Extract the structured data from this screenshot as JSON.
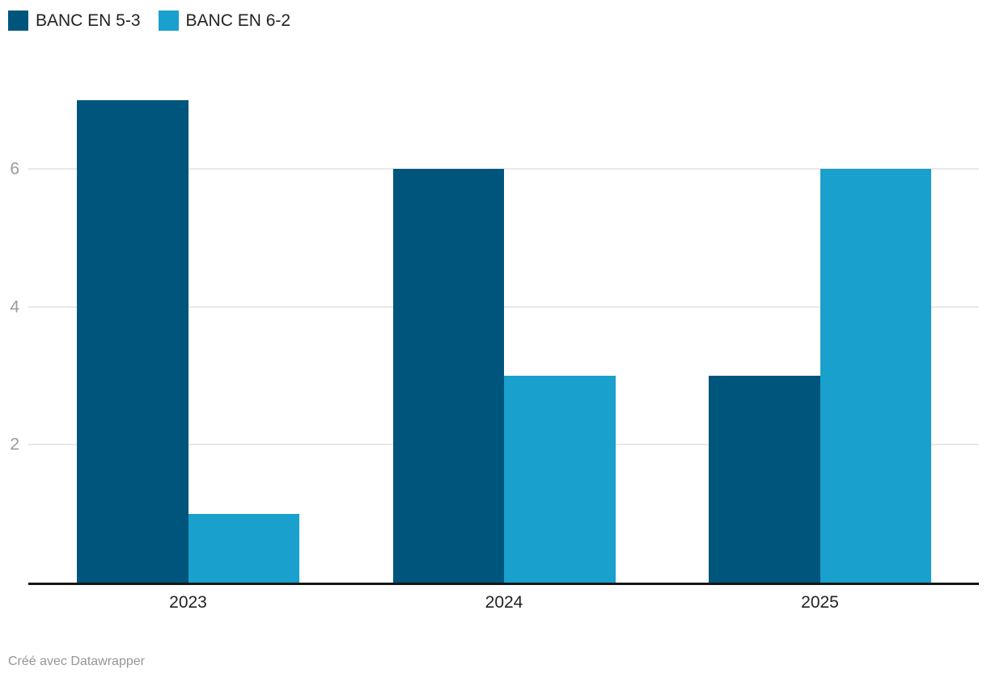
{
  "chart_data": {
    "type": "bar",
    "title": "",
    "categories": [
      "2023",
      "2024",
      "2025"
    ],
    "series": [
      {
        "name": "BANC EN 5-3",
        "color": "#00557D",
        "values": [
          7,
          6,
          3
        ]
      },
      {
        "name": "BANC EN 6-2",
        "color": "#19A0CD",
        "values": [
          1,
          3,
          6
        ]
      }
    ],
    "xlabel": "",
    "ylabel": "",
    "ylim": [
      0,
      7.28
    ],
    "yticks": [
      2,
      4,
      6
    ],
    "grid": true,
    "legend_position": "top-left"
  },
  "colors": {
    "series1": "#00557D",
    "series2": "#19A0CD",
    "gridline": "#e8e8e8",
    "axis": "#161616",
    "tick_label": "#9b9b9b",
    "text": "#222222",
    "footer_text": "#969696",
    "background": "#ffffff"
  },
  "footer": {
    "credit": "Créé avec Datawrapper"
  }
}
